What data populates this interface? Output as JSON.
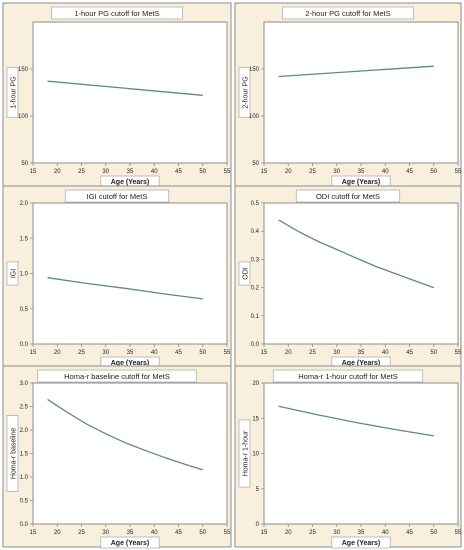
{
  "colors": {
    "panel_bg": "#f8f0dc",
    "plot_bg": "#ffffff",
    "frame": "#8c8c8c",
    "line": "#5e8a86",
    "text": "#222222"
  },
  "chart_data": [
    {
      "type": "line",
      "title": "1-hour PG cutoff for MetS",
      "xlabel": "Age (Years)",
      "ylabel": "1-hour PG",
      "xlim": [
        15,
        55
      ],
      "ylim": [
        50,
        200
      ],
      "xticks": [
        "15",
        "20",
        "25",
        "30",
        "35",
        "40",
        "45",
        "50",
        "55"
      ],
      "yticks": [
        "50",
        "100",
        "150"
      ],
      "ytick_values": [
        50,
        100,
        150
      ],
      "series": [
        {
          "x": [
            18,
            50
          ],
          "y": [
            137,
            122
          ]
        }
      ]
    },
    {
      "type": "line",
      "title": "2-hour PG cutoff for MetS",
      "xlabel": "Age (Years)",
      "ylabel": "2-hour PG",
      "xlim": [
        15,
        55
      ],
      "ylim": [
        50,
        200
      ],
      "xticks": [
        "15",
        "20",
        "25",
        "30",
        "35",
        "40",
        "45",
        "50",
        "55"
      ],
      "yticks": [
        "50",
        "100",
        "150"
      ],
      "ytick_values": [
        50,
        100,
        150
      ],
      "series": [
        {
          "x": [
            18,
            50
          ],
          "y": [
            142,
            153
          ]
        }
      ]
    },
    {
      "type": "line",
      "title": "IGI cutoff for MetS",
      "xlabel": "Age (Years)",
      "ylabel": "IGI",
      "xlim": [
        15,
        55
      ],
      "ylim": [
        0,
        2.0
      ],
      "xticks": [
        "15",
        "20",
        "25",
        "30",
        "35",
        "40",
        "45",
        "50",
        "55"
      ],
      "yticks": [
        "0.0",
        "0.5",
        "1.0",
        "1.5",
        "2.0"
      ],
      "ytick_values": [
        0,
        0.5,
        1.0,
        1.5,
        2.0
      ],
      "series": [
        {
          "x": [
            18,
            26,
            34,
            42,
            50
          ],
          "y": [
            0.94,
            0.86,
            0.79,
            0.71,
            0.64
          ]
        }
      ]
    },
    {
      "type": "line",
      "title": "ODI cutoff for MetS",
      "xlabel": "Age (Years)",
      "ylabel": "ODI",
      "xlim": [
        15,
        55
      ],
      "ylim": [
        0,
        0.5
      ],
      "xticks": [
        "15",
        "20",
        "25",
        "30",
        "35",
        "40",
        "45",
        "50",
        "55"
      ],
      "yticks": [
        "0.0",
        "0.1",
        "0.2",
        "0.3",
        "0.4",
        "0.5"
      ],
      "ytick_values": [
        0,
        0.1,
        0.2,
        0.3,
        0.4,
        0.5
      ],
      "series": [
        {
          "x": [
            18,
            22,
            26,
            30,
            34,
            38,
            42,
            46,
            50
          ],
          "y": [
            0.44,
            0.4,
            0.365,
            0.335,
            0.305,
            0.275,
            0.25,
            0.225,
            0.2
          ]
        }
      ]
    },
    {
      "type": "line",
      "title": "Homa-r baseline cutoff for MetS",
      "xlabel": "Age (Years)",
      "ylabel": "Homa-r baseline",
      "xlim": [
        15,
        55
      ],
      "ylim": [
        0,
        3.0
      ],
      "xticks": [
        "15",
        "20",
        "25",
        "30",
        "35",
        "40",
        "45",
        "50",
        "55"
      ],
      "yticks": [
        "0.0",
        "0.5",
        "1.0",
        "1.5",
        "2.0",
        "2.5",
        "3.0"
      ],
      "ytick_values": [
        0,
        0.5,
        1.0,
        1.5,
        2.0,
        2.5,
        3.0
      ],
      "series": [
        {
          "x": [
            18,
            22,
            26,
            30,
            34,
            38,
            42,
            46,
            50
          ],
          "y": [
            2.65,
            2.38,
            2.13,
            1.92,
            1.73,
            1.57,
            1.42,
            1.28,
            1.15
          ]
        }
      ]
    },
    {
      "type": "line",
      "title": "Homa-r 1-hour cutoff for MetS",
      "xlabel": "Age (Years)",
      "ylabel": "Homa-r 1-hour",
      "xlim": [
        15,
        55
      ],
      "ylim": [
        0,
        20
      ],
      "xticks": [
        "15",
        "20",
        "25",
        "30",
        "35",
        "40",
        "45",
        "50",
        "55"
      ],
      "yticks": [
        "0",
        "5",
        "10",
        "15",
        "20"
      ],
      "ytick_values": [
        0,
        5,
        10,
        15,
        20
      ],
      "series": [
        {
          "x": [
            18,
            26,
            34,
            42,
            50
          ],
          "y": [
            16.7,
            15.5,
            14.4,
            13.4,
            12.5
          ]
        }
      ]
    }
  ]
}
